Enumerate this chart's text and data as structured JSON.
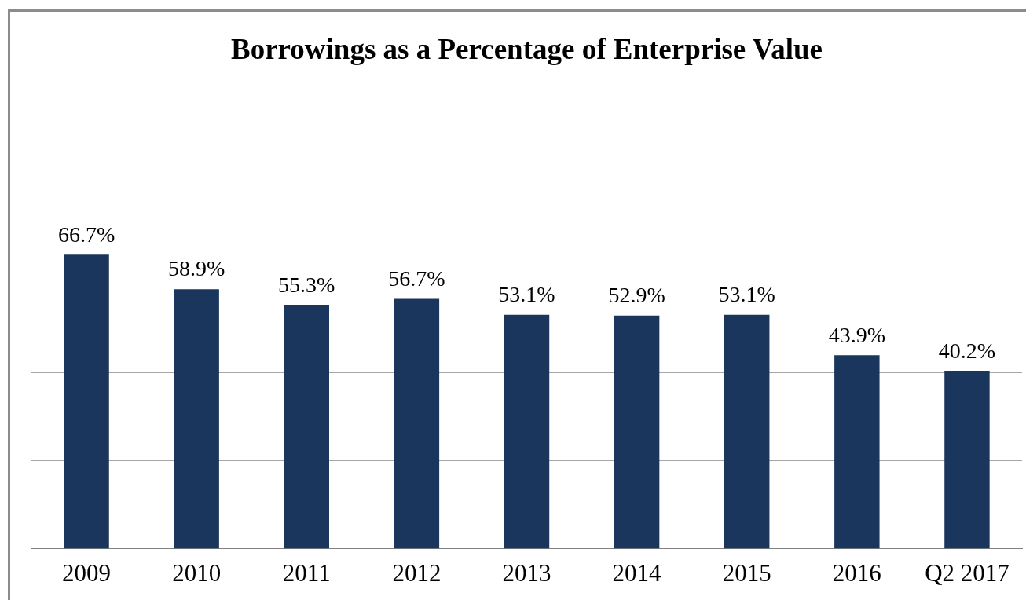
{
  "chart_data": {
    "type": "bar",
    "title": "Borrowings as a Percentage of Enterprise Value",
    "categories": [
      "2009",
      "2010",
      "2011",
      "2012",
      "2013",
      "2014",
      "2015",
      "2016",
      "Q2 2017"
    ],
    "values": [
      66.7,
      58.9,
      55.3,
      56.7,
      53.1,
      52.9,
      53.1,
      43.9,
      40.2
    ],
    "value_labels": [
      "66.7%",
      "58.9%",
      "55.3%",
      "56.7%",
      "53.1%",
      "52.9%",
      "53.1%",
      "43.9%",
      "40.2%"
    ],
    "color": "#1a365d",
    "ylim": [
      0,
      100
    ],
    "yticks": [
      {
        "value": 0,
        "label": null
      },
      {
        "value": 20,
        "label": null
      },
      {
        "value": 40,
        "label": null
      },
      {
        "value": 60,
        "label": null
      },
      {
        "value": 80,
        "label": null
      },
      {
        "value": 100,
        "label": null
      }
    ],
    "tick_labels": "x",
    "grid": "y",
    "legend": false
  }
}
